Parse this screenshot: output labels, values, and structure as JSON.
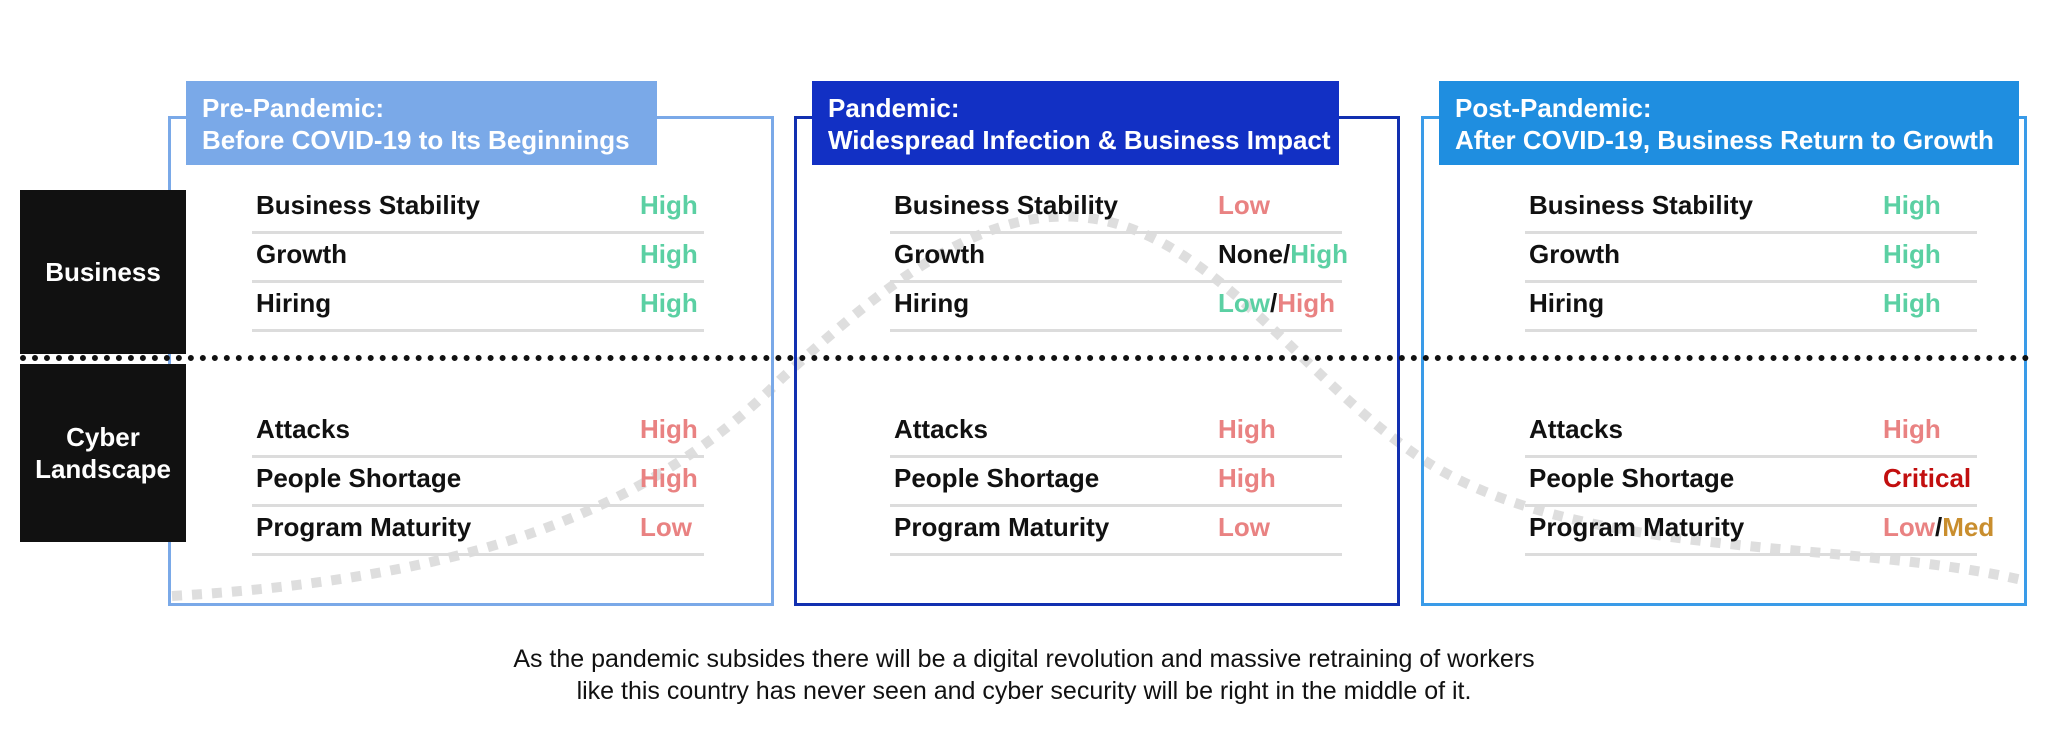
{
  "side_labels": {
    "business": "Business",
    "cyber": "Cyber\nLandscape"
  },
  "colors": {
    "pre_header": "#7aa9e8",
    "pre_border": "#7aa9e8",
    "pandemic_header": "#1230c4",
    "pandemic_border": "#1230b0",
    "post_header": "#1f8ee0",
    "post_border": "#3a9be8",
    "high_good": "#5bd0a3",
    "salmon": "#e98282",
    "critical": "#c20f0f",
    "med": "#c98e2e",
    "neutral": "#111111"
  },
  "panels": [
    {
      "id": "pre",
      "header_line1": "Pre-Pandemic:",
      "header_line2": "Before COVID-19 to Its Beginnings",
      "business": [
        {
          "label": "Business Stability",
          "value": [
            {
              "text": "High",
              "color": "#5bd0a3"
            }
          ]
        },
        {
          "label": "Growth",
          "value": [
            {
              "text": "High",
              "color": "#5bd0a3"
            }
          ]
        },
        {
          "label": "Hiring",
          "value": [
            {
              "text": "High",
              "color": "#5bd0a3"
            }
          ]
        }
      ],
      "cyber": [
        {
          "label": "Attacks",
          "value": [
            {
              "text": "High",
              "color": "#e98282"
            }
          ]
        },
        {
          "label": "People Shortage",
          "value": [
            {
              "text": "High",
              "color": "#e98282"
            }
          ]
        },
        {
          "label": "Program Maturity",
          "value": [
            {
              "text": "Low",
              "color": "#e98282"
            }
          ]
        }
      ]
    },
    {
      "id": "pandemic",
      "header_line1": "Pandemic:",
      "header_line2": "Widespread Infection & Business Impact",
      "business": [
        {
          "label": "Business Stability",
          "value": [
            {
              "text": "Low",
              "color": "#e98282"
            }
          ]
        },
        {
          "label": "Growth",
          "value": [
            {
              "text": "None",
              "color": "#111111"
            },
            {
              "text": "/",
              "color": "#111111"
            },
            {
              "text": "High",
              "color": "#5bd0a3"
            }
          ]
        },
        {
          "label": "Hiring",
          "value": [
            {
              "text": "Low",
              "color": "#5bd0a3"
            },
            {
              "text": "/",
              "color": "#111111"
            },
            {
              "text": "High",
              "color": "#e98282"
            }
          ]
        }
      ],
      "cyber": [
        {
          "label": "Attacks",
          "value": [
            {
              "text": "High",
              "color": "#e98282"
            }
          ]
        },
        {
          "label": "People Shortage",
          "value": [
            {
              "text": "High",
              "color": "#e98282"
            }
          ]
        },
        {
          "label": "Program Maturity",
          "value": [
            {
              "text": "Low",
              "color": "#e98282"
            }
          ]
        }
      ]
    },
    {
      "id": "post",
      "header_line1": "Post-Pandemic:",
      "header_line2": "After COVID-19, Business Return to Growth",
      "business": [
        {
          "label": "Business Stability",
          "value": [
            {
              "text": "High",
              "color": "#5bd0a3"
            }
          ]
        },
        {
          "label": "Growth",
          "value": [
            {
              "text": "High",
              "color": "#5bd0a3"
            }
          ]
        },
        {
          "label": "Hiring",
          "value": [
            {
              "text": "High",
              "color": "#5bd0a3"
            }
          ]
        }
      ],
      "cyber": [
        {
          "label": "Attacks",
          "value": [
            {
              "text": "High",
              "color": "#e98282"
            }
          ]
        },
        {
          "label": "People Shortage",
          "value": [
            {
              "text": "Critical",
              "color": "#c20f0f"
            }
          ]
        },
        {
          "label": "Program Maturity",
          "value": [
            {
              "text": "Low",
              "color": "#e98282"
            },
            {
              "text": "/",
              "color": "#111111"
            },
            {
              "text": "Med",
              "color": "#c98e2e"
            }
          ]
        }
      ]
    }
  ],
  "caption": {
    "line1": "As the pandemic subsides there will be a digital revolution and massive retraining of workers",
    "line2": "like this country has never seen and cyber security will be right in the middle of it."
  }
}
